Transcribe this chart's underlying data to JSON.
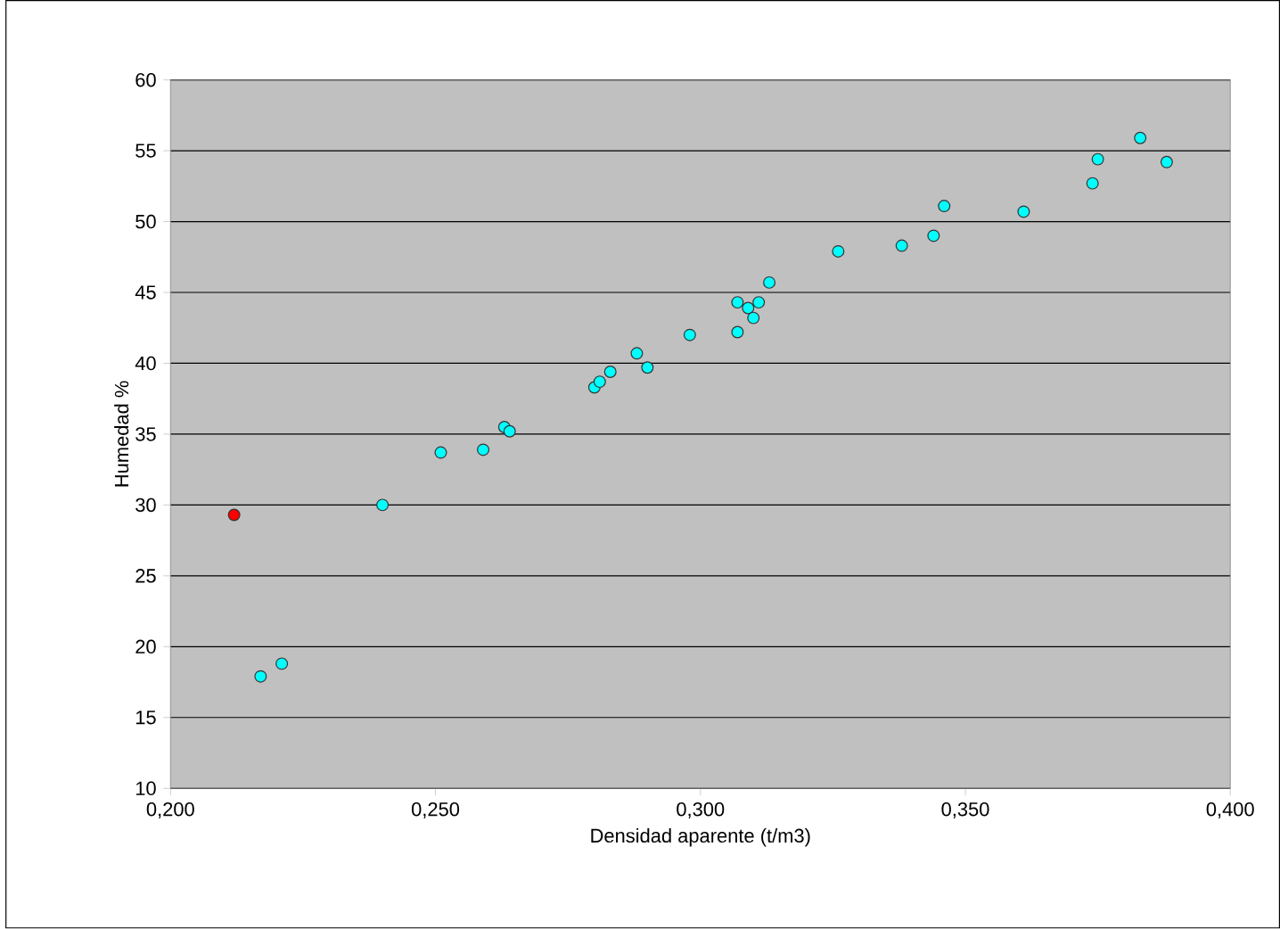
{
  "chart_data": {
    "type": "scatter",
    "xlabel": "Densidad aparente (t/m3)",
    "ylabel": "Humedad %",
    "xlim": [
      0.2,
      0.4
    ],
    "xticks": [
      {
        "value": 0.2,
        "label": "0,200"
      },
      {
        "value": 0.25,
        "label": "0,250"
      },
      {
        "value": 0.3,
        "label": "0,300"
      },
      {
        "value": 0.35,
        "label": "0,350"
      },
      {
        "value": 0.4,
        "label": "0,400"
      }
    ],
    "ylim": [
      10,
      60
    ],
    "yticks": [
      10,
      15,
      20,
      25,
      30,
      35,
      40,
      45,
      50,
      55,
      60
    ],
    "grid": "y",
    "marker": "circle",
    "series": [
      {
        "color": "#00ffff",
        "x": [
          0.217,
          0.221,
          0.24,
          0.251,
          0.259,
          0.263,
          0.264,
          0.28,
          0.281,
          0.283,
          0.288,
          0.29,
          0.298,
          0.307,
          0.307,
          0.309,
          0.31,
          0.311,
          0.313,
          0.326,
          0.338,
          0.344,
          0.346,
          0.361,
          0.374,
          0.375,
          0.383,
          0.388
        ],
        "values": [
          17.9,
          18.8,
          30.0,
          33.7,
          33.9,
          35.5,
          35.2,
          38.3,
          38.7,
          39.4,
          40.7,
          39.7,
          42.0,
          42.2,
          44.3,
          43.9,
          43.2,
          44.3,
          45.7,
          47.9,
          48.3,
          49.0,
          51.1,
          50.7,
          52.7,
          54.4,
          55.9,
          54.2
        ]
      },
      {
        "color": "#ff0000",
        "x": [
          0.212
        ],
        "values": [
          29.3
        ]
      }
    ]
  }
}
